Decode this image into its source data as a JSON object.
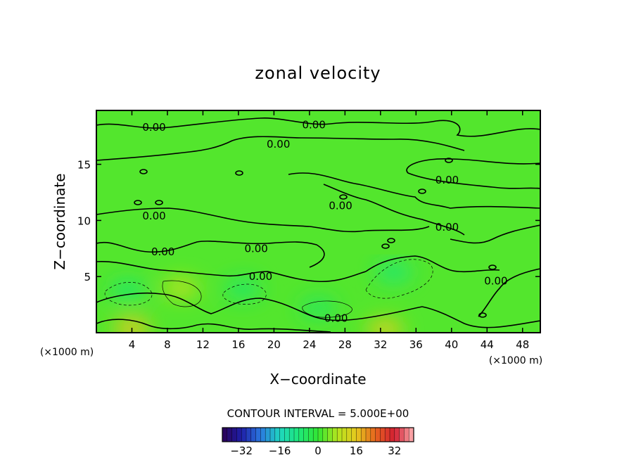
{
  "chart_data": {
    "type": "heatmap",
    "title": "zonal velocity",
    "xlabel": "X−coordinate",
    "ylabel": "Z−coordinate",
    "x_unit": "(×1000 m)",
    "xlim": [
      0,
      50
    ],
    "ylim": [
      0,
      19.8
    ],
    "x_ticks": [
      4,
      8,
      12,
      16,
      20,
      24,
      28,
      32,
      36,
      40,
      44,
      48
    ],
    "y_ticks": [
      5,
      10,
      15
    ],
    "contour_interval_text": "CONTOUR INTERVAL = 5.000E+00",
    "contour_interval": 5,
    "zero_contour_label": "0.00",
    "colorbar": {
      "min": -40,
      "max": 40,
      "ticks": [
        -32,
        -16,
        0,
        16,
        32
      ],
      "colors": [
        "#2a0055",
        "#1f1fa8",
        "#2a78e0",
        "#1fd6c0",
        "#1ee87a",
        "#32e632",
        "#b4e61e",
        "#e6c81e",
        "#e6641e",
        "#d21e32",
        "#ffb4b4"
      ]
    },
    "field_description_values": {
      "background_value": 2,
      "low_pockets": [
        {
          "x": 3.5,
          "z": 3.8,
          "value": -6
        },
        {
          "x": 16.5,
          "z": 3.9,
          "value": -6
        },
        {
          "x": 33.5,
          "z": 5.4,
          "value": -7
        },
        {
          "x": 25,
          "z": 2.2,
          "value": -5
        }
      ],
      "high_pockets": [
        {
          "x": 9.5,
          "z": 4.0,
          "value": 9
        },
        {
          "x": 4,
          "z": 0.4,
          "value": 16
        },
        {
          "x": 32.5,
          "z": 0.3,
          "value": 14
        }
      ]
    },
    "contour_labels": [
      {
        "text": "0.00",
        "x": 6.5,
        "z": 18.3
      },
      {
        "text": "0.00",
        "x": 24.5,
        "z": 18.5
      },
      {
        "text": "0.00",
        "x": 20.5,
        "z": 16.8
      },
      {
        "text": "0.00",
        "x": 39.5,
        "z": 13.6
      },
      {
        "text": "0.00",
        "x": 27.5,
        "z": 11.3
      },
      {
        "text": "0.00",
        "x": 6.5,
        "z": 10.4
      },
      {
        "text": "0.00",
        "x": 39.5,
        "z": 9.4
      },
      {
        "text": "0.00",
        "x": 7.5,
        "z": 7.2
      },
      {
        "text": "0.00",
        "x": 18,
        "z": 7.5
      },
      {
        "text": "0.00",
        "x": 18.5,
        "z": 5.0
      },
      {
        "text": "0.00",
        "x": 45,
        "z": 4.6
      },
      {
        "text": "0.00",
        "x": 27,
        "z": 1.3
      }
    ]
  }
}
